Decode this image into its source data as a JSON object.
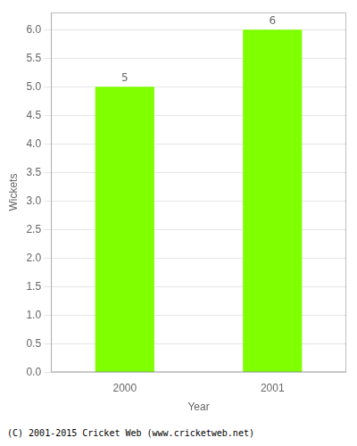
{
  "chart_data": {
    "type": "bar",
    "categories": [
      "2000",
      "2001"
    ],
    "values": [
      5,
      6
    ],
    "color": "#7fff00",
    "xlabel": "Year",
    "ylabel": "Wickets",
    "ylim": [
      0,
      6.3
    ],
    "yticks": [
      {
        "value": 0,
        "label": "0.0"
      },
      0.5,
      {
        "value": 1,
        "label": "1.0"
      },
      1.5,
      {
        "value": 2,
        "label": "2.0"
      },
      2.5,
      {
        "value": 3,
        "label": "3.0"
      },
      3.5,
      {
        "value": 4,
        "label": "4.0"
      },
      4.5,
      {
        "value": 5,
        "label": "5.0"
      },
      5.5,
      {
        "value": 6,
        "label": "6.0"
      }
    ],
    "grid": true,
    "data_labels": true,
    "annotations": [
      "(C) 2001-2015 Cricket Web (www.cricketweb.net)"
    ]
  }
}
